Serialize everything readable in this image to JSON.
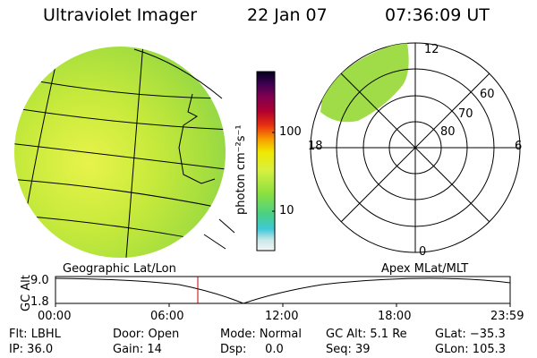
{
  "header": {
    "instrument": "Ultraviolet Imager",
    "date": "22 Jan 07",
    "time": "07:36:09 UT"
  },
  "colorbar": {
    "unit_label": "photon cm⁻²s⁻¹",
    "ticks": [
      "100",
      "10"
    ]
  },
  "polar_plot": {
    "mlt_labels": [
      "12",
      "18",
      "6",
      "0"
    ],
    "lat_labels": [
      "60",
      "70",
      "80"
    ]
  },
  "timeline": {
    "left_label": "Geographic Lat/Lon",
    "right_label": "Apex MLat/MLT",
    "axis_label": "GC Alt",
    "y_ticks": [
      "9.0",
      "1.8"
    ],
    "x_ticks": [
      "00:00",
      "06:00",
      "12:00",
      "18:00",
      "23:59"
    ],
    "marker_time_hours": 7.6
  },
  "info": {
    "col1": [
      "Flt: LBHL",
      "IP: 36.0"
    ],
    "col2": [
      "Door: Open",
      "Gain: 14"
    ],
    "col3": [
      "Mode: Normal",
      "Dsp:     0.0"
    ],
    "col4": [
      "GC Alt: 5.1 Re",
      "Seq: 39"
    ],
    "col5": [
      "GLat: −35.3",
      "GLon: 105.3"
    ]
  }
}
